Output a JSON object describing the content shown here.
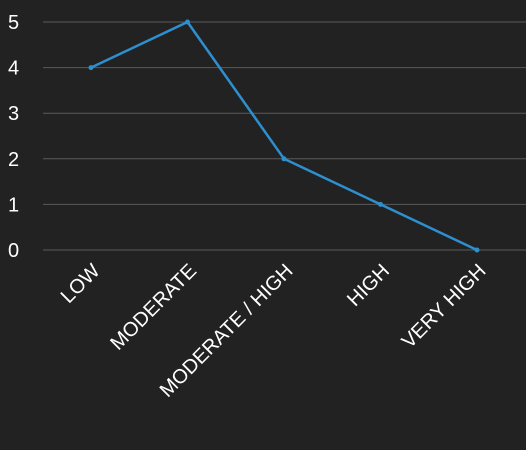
{
  "chart_data": {
    "type": "line",
    "categories": [
      "LOW",
      "MODERATE",
      "MODERATE / HIGH",
      "HIGH",
      "VERY HIGH"
    ],
    "values": [
      4,
      5,
      2,
      1,
      0
    ],
    "ylim": [
      0,
      5
    ],
    "yticks": [
      "0",
      "1",
      "2",
      "3",
      "4",
      "5"
    ],
    "grid": true,
    "colors": {
      "background": "#222222",
      "line": "#2e8fcf",
      "grid": "#5a5a5a",
      "text": "#ffffff"
    }
  }
}
